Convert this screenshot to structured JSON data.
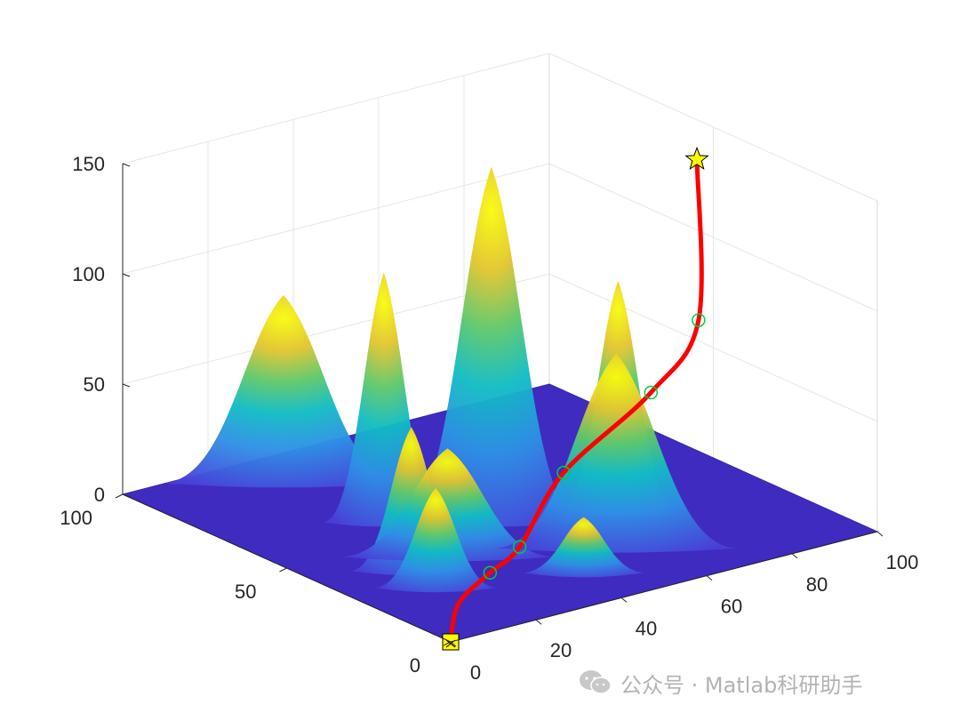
{
  "chart_data": {
    "type": "surface3d",
    "title": "",
    "xlabel": "",
    "ylabel": "",
    "zlabel": "",
    "xlim": [
      0,
      100
    ],
    "ylim": [
      0,
      100
    ],
    "zlim": [
      0,
      150
    ],
    "x_ticks": [
      0,
      20,
      40,
      60,
      80,
      100
    ],
    "y_ticks": [
      0,
      50,
      100
    ],
    "z_ticks": [
      0,
      50,
      100,
      150
    ],
    "grid": true,
    "colormap": "parula",
    "peaks": [
      {
        "x": 30,
        "y": 90,
        "height": 82,
        "width": 8
      },
      {
        "x": 32,
        "y": 62,
        "height": 110,
        "width": 4
      },
      {
        "x": 48,
        "y": 50,
        "height": 158,
        "width": 6
      },
      {
        "x": 30,
        "y": 40,
        "height": 46,
        "width": 7
      },
      {
        "x": 20,
        "y": 38,
        "height": 62,
        "width": 4
      },
      {
        "x": 18,
        "y": 28,
        "height": 42,
        "width": 4
      },
      {
        "x": 70,
        "y": 40,
        "height": 102,
        "width": 4
      },
      {
        "x": 45,
        "y": 18,
        "height": 22,
        "width": 4
      },
      {
        "x": 58,
        "y": 25,
        "height": 85,
        "width": 8
      }
    ],
    "series": [
      {
        "type": "path",
        "color": "#ff0000",
        "points": [
          {
            "x": 0,
            "y": 0,
            "z": 0
          },
          {
            "x": 8,
            "y": 8,
            "z": 8
          },
          {
            "x": 20,
            "y": 14,
            "z": 12
          },
          {
            "x": 30,
            "y": 18,
            "z": 16
          },
          {
            "x": 48,
            "y": 28,
            "z": 34
          },
          {
            "x": 70,
            "y": 30,
            "z": 58
          },
          {
            "x": 85,
            "y": 35,
            "z": 80
          },
          {
            "x": 100,
            "y": 55,
            "z": 132
          }
        ]
      },
      {
        "type": "markers",
        "marker": "circle",
        "color": "#00cc44",
        "points": [
          {
            "x": 20,
            "y": 14,
            "z": 12
          },
          {
            "x": 30,
            "y": 18,
            "z": 16
          },
          {
            "x": 48,
            "y": 28,
            "z": 34
          },
          {
            "x": 70,
            "y": 30,
            "z": 58
          },
          {
            "x": 85,
            "y": 35,
            "z": 80
          }
        ]
      }
    ],
    "start": {
      "x": 0,
      "y": 0,
      "z": 0,
      "marker": "square",
      "color": "#ffff00"
    },
    "goal": {
      "x": 100,
      "y": 55,
      "z": 132,
      "marker": "star",
      "color": "#ffff00"
    }
  },
  "watermark": {
    "text": "公众号 · Matlab科研助手",
    "icon": "wechat-icon"
  }
}
